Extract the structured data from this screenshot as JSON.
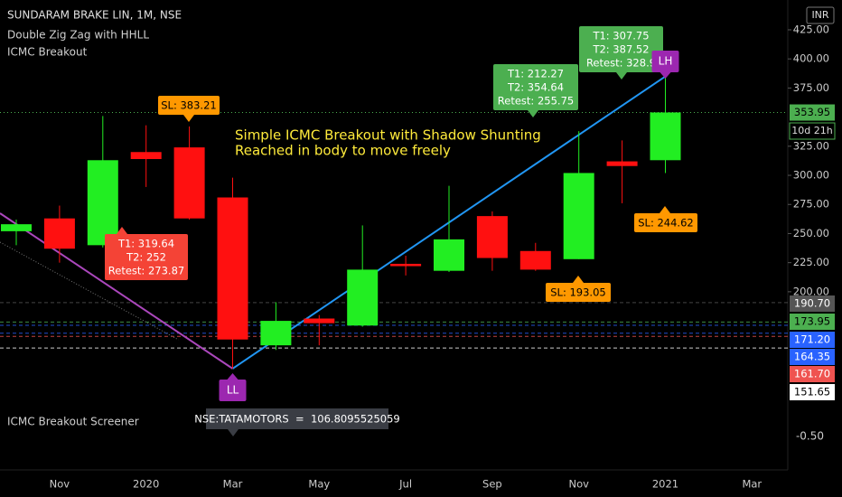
{
  "chart_data": {
    "type": "candlestick",
    "title": "SUNDARAM BRAKE LIN, 1M, NSE",
    "indicators": [
      "Double Zig Zag with HHLL",
      "ICMC Breakout"
    ],
    "note_lines": [
      "Simple ICMC Breakout with Shadow Shunting",
      "Reached in body to move freely"
    ],
    "categories": [
      null,
      "Nov",
      null,
      "2020",
      null,
      "Mar",
      null,
      "May",
      null,
      "Jul",
      null,
      "Sep",
      null,
      "Nov",
      null,
      "2021",
      null,
      "Mar"
    ],
    "open": [
      252,
      263,
      240,
      320,
      324,
      281,
      154,
      177,
      171,
      224,
      218,
      265,
      235,
      228,
      312,
      313,
      null,
      null
    ],
    "high": [
      262,
      274,
      351,
      343,
      342,
      298,
      191,
      180,
      257,
      231,
      291,
      269,
      242,
      338,
      330,
      385,
      null,
      null
    ],
    "low": [
      240,
      225,
      238,
      290,
      262,
      134,
      150,
      154,
      170,
      214,
      217,
      218,
      218,
      228,
      276,
      302,
      null,
      null
    ],
    "close": [
      258,
      237,
      313,
      314,
      263,
      159,
      175,
      173,
      219,
      222,
      245,
      229,
      219,
      302,
      308,
      354,
      null,
      null
    ],
    "up_color": "#22ee22",
    "down_color": "#ff1010",
    "ylim": [
      47,
      450.6
    ],
    "yticks": [
      {
        "value": 200,
        "label": "200.00"
      },
      {
        "value": 225,
        "label": "225.00"
      },
      {
        "value": 250,
        "label": "250.00"
      },
      {
        "value": 275,
        "label": "275.00"
      },
      {
        "value": 300,
        "label": "300.00"
      },
      {
        "value": 325,
        "label": "325.00"
      },
      {
        "value": 375,
        "label": "375.00"
      },
      {
        "value": 400,
        "label": "400.00"
      },
      {
        "value": 425,
        "label": "425.00"
      }
    ],
    "grid": false,
    "currency": "INR",
    "last_price": {
      "value": 353.95,
      "label": "353.95",
      "color": "#4caf50"
    },
    "countdown": "10d 21h",
    "price_labels": [
      {
        "value": 190.7,
        "label": "190.70",
        "color": "#555555"
      },
      {
        "value": 173.95,
        "label": "173.95",
        "color": "#4caf50"
      },
      {
        "value": 171.2,
        "label": "171.20",
        "color": "#2962ff"
      },
      {
        "value": 164.35,
        "label": "164.35",
        "color": "#2962ff"
      },
      {
        "value": 161.7,
        "label": "161.70",
        "color": "#ef5350"
      },
      {
        "value": 151.65,
        "label": "151.65",
        "color": "#ffffff"
      }
    ],
    "annotations": [
      {
        "lines": [
          "SL: 383.21"
        ],
        "color": "#ff9800"
      },
      {
        "lines": [
          "T1: 319.64",
          "T2: 252",
          "Retest: 273.87"
        ],
        "color": "#f44336"
      },
      {
        "lines": [
          "T1: 212.27",
          "T2: 354.64",
          "Retest: 255.75"
        ],
        "color": "#4caf50"
      },
      {
        "lines": [
          "T1: 307.75",
          "T2: 387.52",
          "Retest: 328.9"
        ],
        "color": "#4caf50"
      },
      {
        "lines": [
          "SL: 193.05"
        ],
        "color": "#ff9800"
      },
      {
        "lines": [
          "SL: 244.62"
        ],
        "color": "#ff9800"
      }
    ],
    "pivots": [
      {
        "label": "LL",
        "color": "#9c27b0"
      },
      {
        "label": "LH",
        "color": "#9c27b0"
      }
    ],
    "zigzag_color": "#2196f3",
    "screener": {
      "title": "ICMC Breakout Screener",
      "readout": "NSE:TATAMOTORS  =  106.8095525059",
      "axis_label": "-0.50"
    }
  }
}
